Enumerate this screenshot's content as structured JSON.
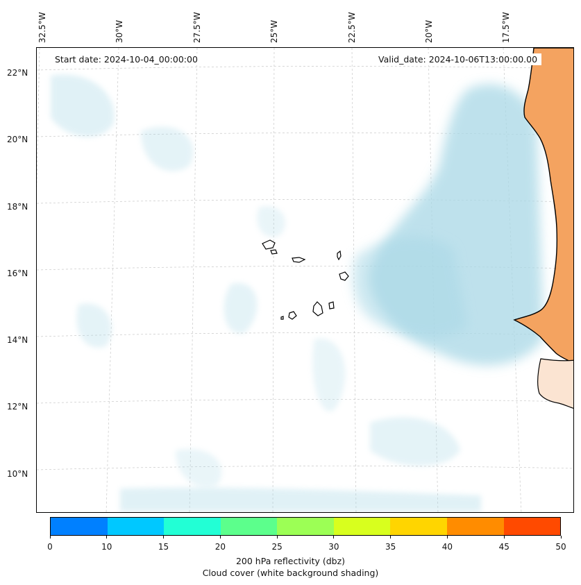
{
  "map": {
    "start_date": "Start date: 2024-10-04_00:00:00",
    "valid_date": "Valid_date: 2024-10-06T13:00:00.00",
    "lon_labels": [
      "32.5°W",
      "30°W",
      "27.5°W",
      "25°W",
      "22.5°W",
      "20°W",
      "17.5°W"
    ],
    "lat_labels": [
      "22°N",
      "20°N",
      "18°N",
      "16°N",
      "14°N",
      "12°N",
      "10°N"
    ],
    "land_color": "#f4a360",
    "cloud_color": "#a9d8e6",
    "coastline_color": "#000000"
  },
  "colorbar": {
    "ticks": [
      "0",
      "10",
      "15",
      "20",
      "25",
      "30",
      "35",
      "40",
      "45",
      "50"
    ],
    "colors": [
      "#0080ff",
      "#00c8ff",
      "#22ffd5",
      "#5cff8c",
      "#9cff55",
      "#d8ff1e",
      "#ffd500",
      "#ff8c00",
      "#ff4a00"
    ],
    "label_line1": "200 hPa reflectivity (dbz)",
    "label_line2": "Cloud cover (white background shading)"
  }
}
